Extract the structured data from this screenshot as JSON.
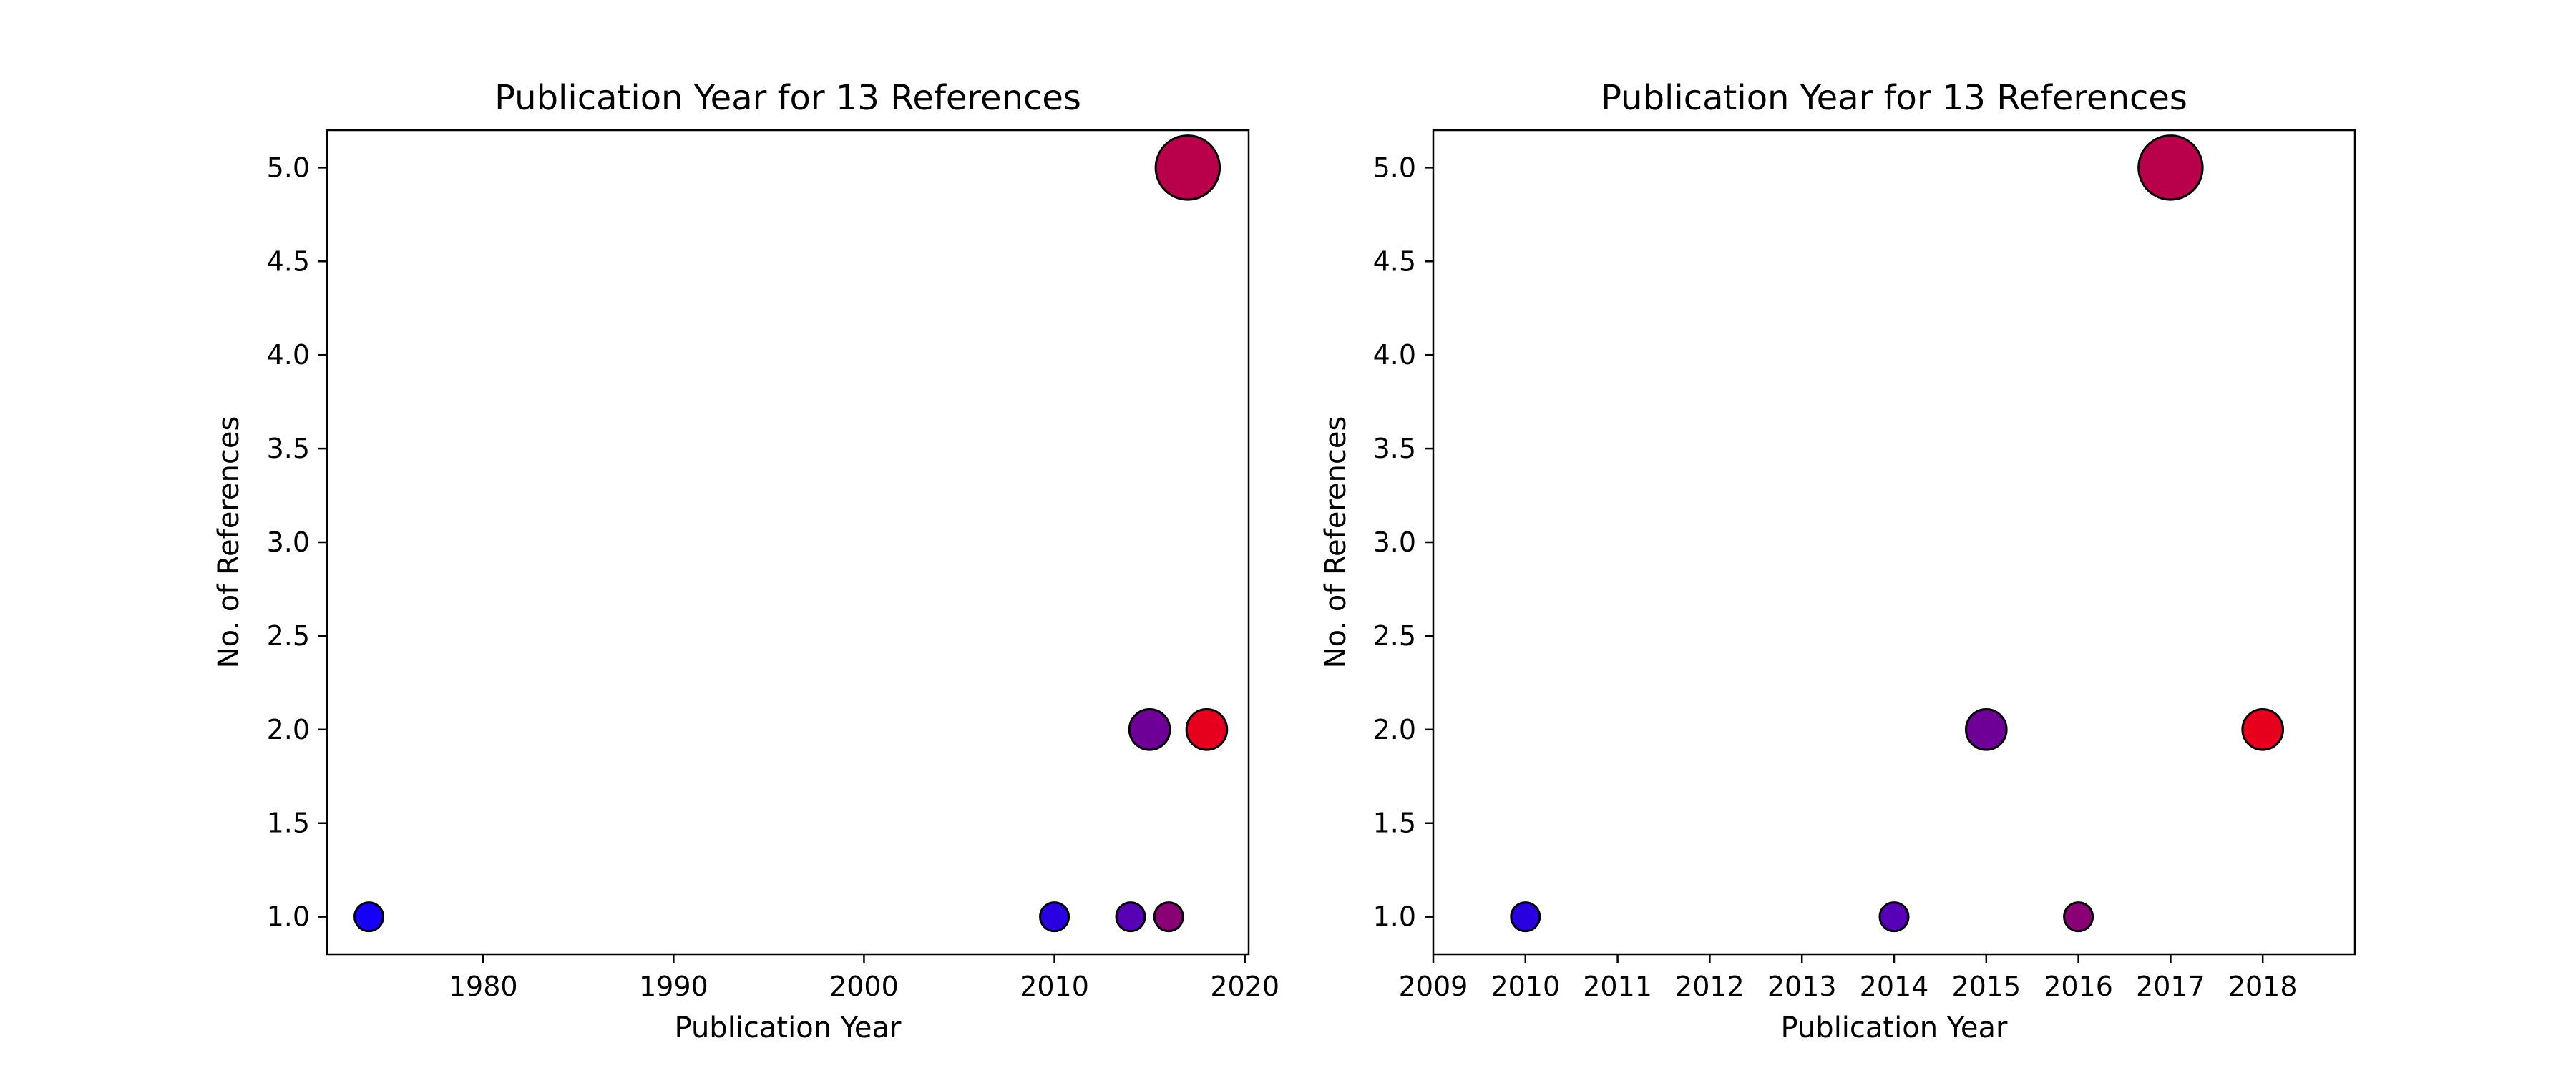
{
  "chart_data": [
    {
      "type": "scatter",
      "title": "Publication Year for 13 References",
      "xlabel": "Publication Year",
      "ylabel": "No. of References",
      "xlim": [
        1971.8,
        2020.2
      ],
      "ylim": [
        0.8,
        5.2
      ],
      "xticks": [
        1980,
        1990,
        2000,
        2010,
        2020
      ],
      "yticks": [
        1.0,
        1.5,
        2.0,
        2.5,
        3.0,
        3.5,
        4.0,
        4.5,
        5.0
      ],
      "grid": false,
      "points": [
        {
          "x": 1974,
          "y": 1,
          "color": "#1600f5"
        },
        {
          "x": 2010,
          "y": 1,
          "color": "#2b00e0"
        },
        {
          "x": 2014,
          "y": 1,
          "color": "#5700b5"
        },
        {
          "x": 2015,
          "y": 2,
          "color": "#6e0098"
        },
        {
          "x": 2016,
          "y": 1,
          "color": "#8a0075"
        },
        {
          "x": 2017,
          "y": 5,
          "color": "#b8004b"
        },
        {
          "x": 2018,
          "y": 2,
          "color": "#e6001d"
        }
      ]
    },
    {
      "type": "scatter",
      "title": "Publication Year for 13 References",
      "xlabel": "Publication Year",
      "ylabel": "No. of References",
      "xlim": [
        2009,
        2019
      ],
      "ylim": [
        0.8,
        5.2
      ],
      "xticks": [
        2009,
        2010,
        2011,
        2012,
        2013,
        2014,
        2015,
        2016,
        2017,
        2018
      ],
      "yticks": [
        1.0,
        1.5,
        2.0,
        2.5,
        3.0,
        3.5,
        4.0,
        4.5,
        5.0
      ],
      "grid": false,
      "points": [
        {
          "x": 2010,
          "y": 1,
          "color": "#2b00e0"
        },
        {
          "x": 2014,
          "y": 1,
          "color": "#5700b5"
        },
        {
          "x": 2015,
          "y": 2,
          "color": "#6e0098"
        },
        {
          "x": 2016,
          "y": 1,
          "color": "#8a0075"
        },
        {
          "x": 2017,
          "y": 5,
          "color": "#b8004b"
        },
        {
          "x": 2018,
          "y": 2,
          "color": "#e6001d"
        }
      ]
    }
  ]
}
